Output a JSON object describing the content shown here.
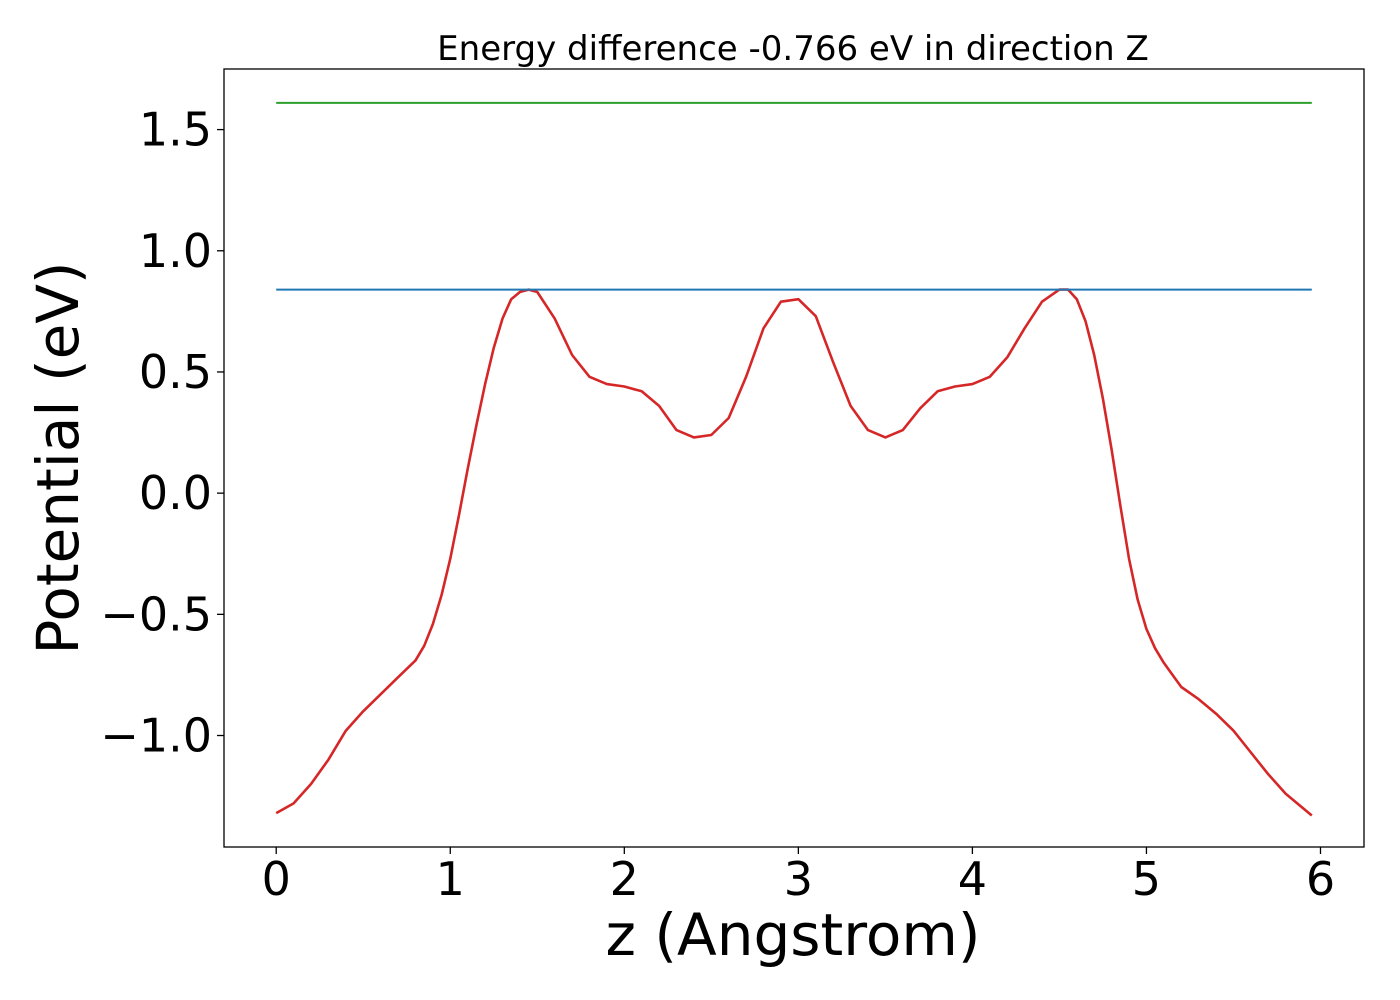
{
  "chart_data": {
    "type": "line",
    "title": "Energy difference -0.766 eV in direction Z",
    "xlabel": "z (Angstrom)",
    "ylabel": "Potential (eV)",
    "xlim": [
      -0.3,
      6.25
    ],
    "ylim": [
      -1.46,
      1.75
    ],
    "xticks": [
      {
        "value": 0,
        "label": "0"
      },
      {
        "value": 1,
        "label": "1"
      },
      {
        "value": 2,
        "label": "2"
      },
      {
        "value": 3,
        "label": "3"
      },
      {
        "value": 4,
        "label": "4"
      },
      {
        "value": 5,
        "label": "5"
      },
      {
        "value": 6,
        "label": "6"
      }
    ],
    "yticks": [
      {
        "value": -1.0,
        "label": "−1.0"
      },
      {
        "value": -0.5,
        "label": "−0.5"
      },
      {
        "value": 0.0,
        "label": "0.0"
      },
      {
        "value": 0.5,
        "label": "0.5"
      },
      {
        "value": 1.0,
        "label": "1.0"
      },
      {
        "value": 1.5,
        "label": "1.5"
      }
    ],
    "grid": false,
    "legend": "none",
    "series": [
      {
        "color": "#d62728",
        "x": [
          0.0,
          0.1,
          0.2,
          0.3,
          0.4,
          0.5,
          0.6,
          0.7,
          0.8,
          0.85,
          0.9,
          0.95,
          1.0,
          1.05,
          1.1,
          1.15,
          1.2,
          1.25,
          1.3,
          1.35,
          1.4,
          1.45,
          1.5,
          1.6,
          1.7,
          1.8,
          1.9,
          2.0,
          2.1,
          2.2,
          2.3,
          2.4,
          2.5,
          2.6,
          2.7,
          2.8,
          2.9,
          3.0,
          3.1,
          3.2,
          3.3,
          3.4,
          3.5,
          3.6,
          3.7,
          3.8,
          3.9,
          4.0,
          4.1,
          4.2,
          4.3,
          4.4,
          4.5,
          4.55,
          4.6,
          4.65,
          4.7,
          4.75,
          4.8,
          4.85,
          4.9,
          4.95,
          5.0,
          5.05,
          5.1,
          5.15,
          5.2,
          5.3,
          5.4,
          5.5,
          5.6,
          5.7,
          5.8,
          5.9,
          5.95
        ],
        "y": [
          -1.32,
          -1.28,
          -1.2,
          -1.1,
          -0.98,
          -0.9,
          -0.83,
          -0.76,
          -0.69,
          -0.63,
          -0.54,
          -0.42,
          -0.27,
          -0.09,
          0.1,
          0.28,
          0.45,
          0.6,
          0.72,
          0.8,
          0.83,
          0.84,
          0.83,
          0.72,
          0.57,
          0.48,
          0.45,
          0.44,
          0.42,
          0.36,
          0.26,
          0.23,
          0.24,
          0.31,
          0.48,
          0.68,
          0.79,
          0.8,
          0.73,
          0.54,
          0.36,
          0.26,
          0.23,
          0.26,
          0.35,
          0.42,
          0.44,
          0.45,
          0.48,
          0.56,
          0.68,
          0.79,
          0.84,
          0.84,
          0.8,
          0.71,
          0.57,
          0.39,
          0.18,
          -0.05,
          -0.27,
          -0.44,
          -0.56,
          -0.64,
          -0.7,
          -0.75,
          -0.8,
          -0.85,
          -0.91,
          -0.98,
          -1.07,
          -1.16,
          -1.24,
          -1.3,
          -1.33
        ]
      },
      {
        "color": "#1f77b4",
        "x": [
          0.0,
          5.95
        ],
        "y": [
          0.84,
          0.84
        ]
      },
      {
        "color": "#2ca02c",
        "x": [
          0.0,
          5.95
        ],
        "y": [
          1.61,
          1.61
        ]
      }
    ]
  }
}
